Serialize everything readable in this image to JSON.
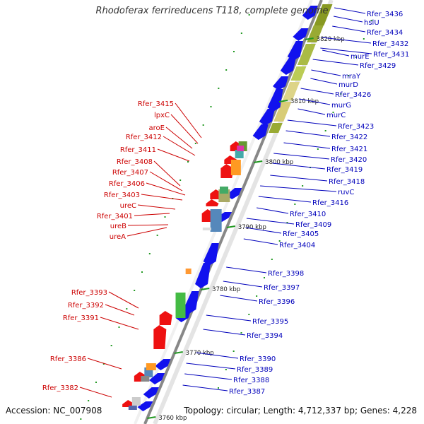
{
  "title": "Rhodoferax ferrireducens T118, complete genome",
  "footer": {
    "accession": "Accession: NC_007908",
    "stats": "Topology: circular; Length: 4,712,337 bp; Genes: 4,228"
  },
  "colors": {
    "forward_gene": "#ee1111",
    "reverse_gene": "#1111ee",
    "backbone": "#888888",
    "tick": "#229922",
    "left_label": "#cc0000",
    "right_label": "#0000bb"
  },
  "scale_labels": [
    "3820 kbp",
    "3810 kbp",
    "3800 kbp",
    "3790 kbp",
    "3780 kbp",
    "3770 kbp",
    "3760 kbp"
  ],
  "left_labels": [
    "Rfer_3415",
    "lpxC",
    "aroE",
    "Rfer_3412",
    "Rfer_3411",
    "Rfer_3408",
    "Rfer_3407",
    "Rfer_3406",
    "Rfer_3403",
    "ureC",
    "Rfer_3401",
    "ureB",
    "ureA",
    "Rfer_3393",
    "Rfer_3392",
    "Rfer_3391",
    "Rfer_3386",
    "Rfer_3382"
  ],
  "right_labels": [
    "Rfer_3436",
    "hslU",
    "Rfer_3434",
    "Rfer_3432",
    "Rfer_3431",
    "murE",
    "Rfer_3429",
    "mraY",
    "murD",
    "Rfer_3426",
    "murG",
    "murC",
    "Rfer_3423",
    "Rfer_3422",
    "Rfer_3421",
    "Rfer_3420",
    "Rfer_3419",
    "Rfer_3418",
    "ruvC",
    "Rfer_3416",
    "Rfer_3410",
    "Rfer_3409",
    "Rfer_3405",
    "Rfer_3404",
    "Rfer_3398",
    "Rfer_3397",
    "Rfer_3396",
    "Rfer_3395",
    "Rfer_3394",
    "Rfer_3390",
    "Rfer_3389",
    "Rfer_3388",
    "Rfer_3387"
  ]
}
